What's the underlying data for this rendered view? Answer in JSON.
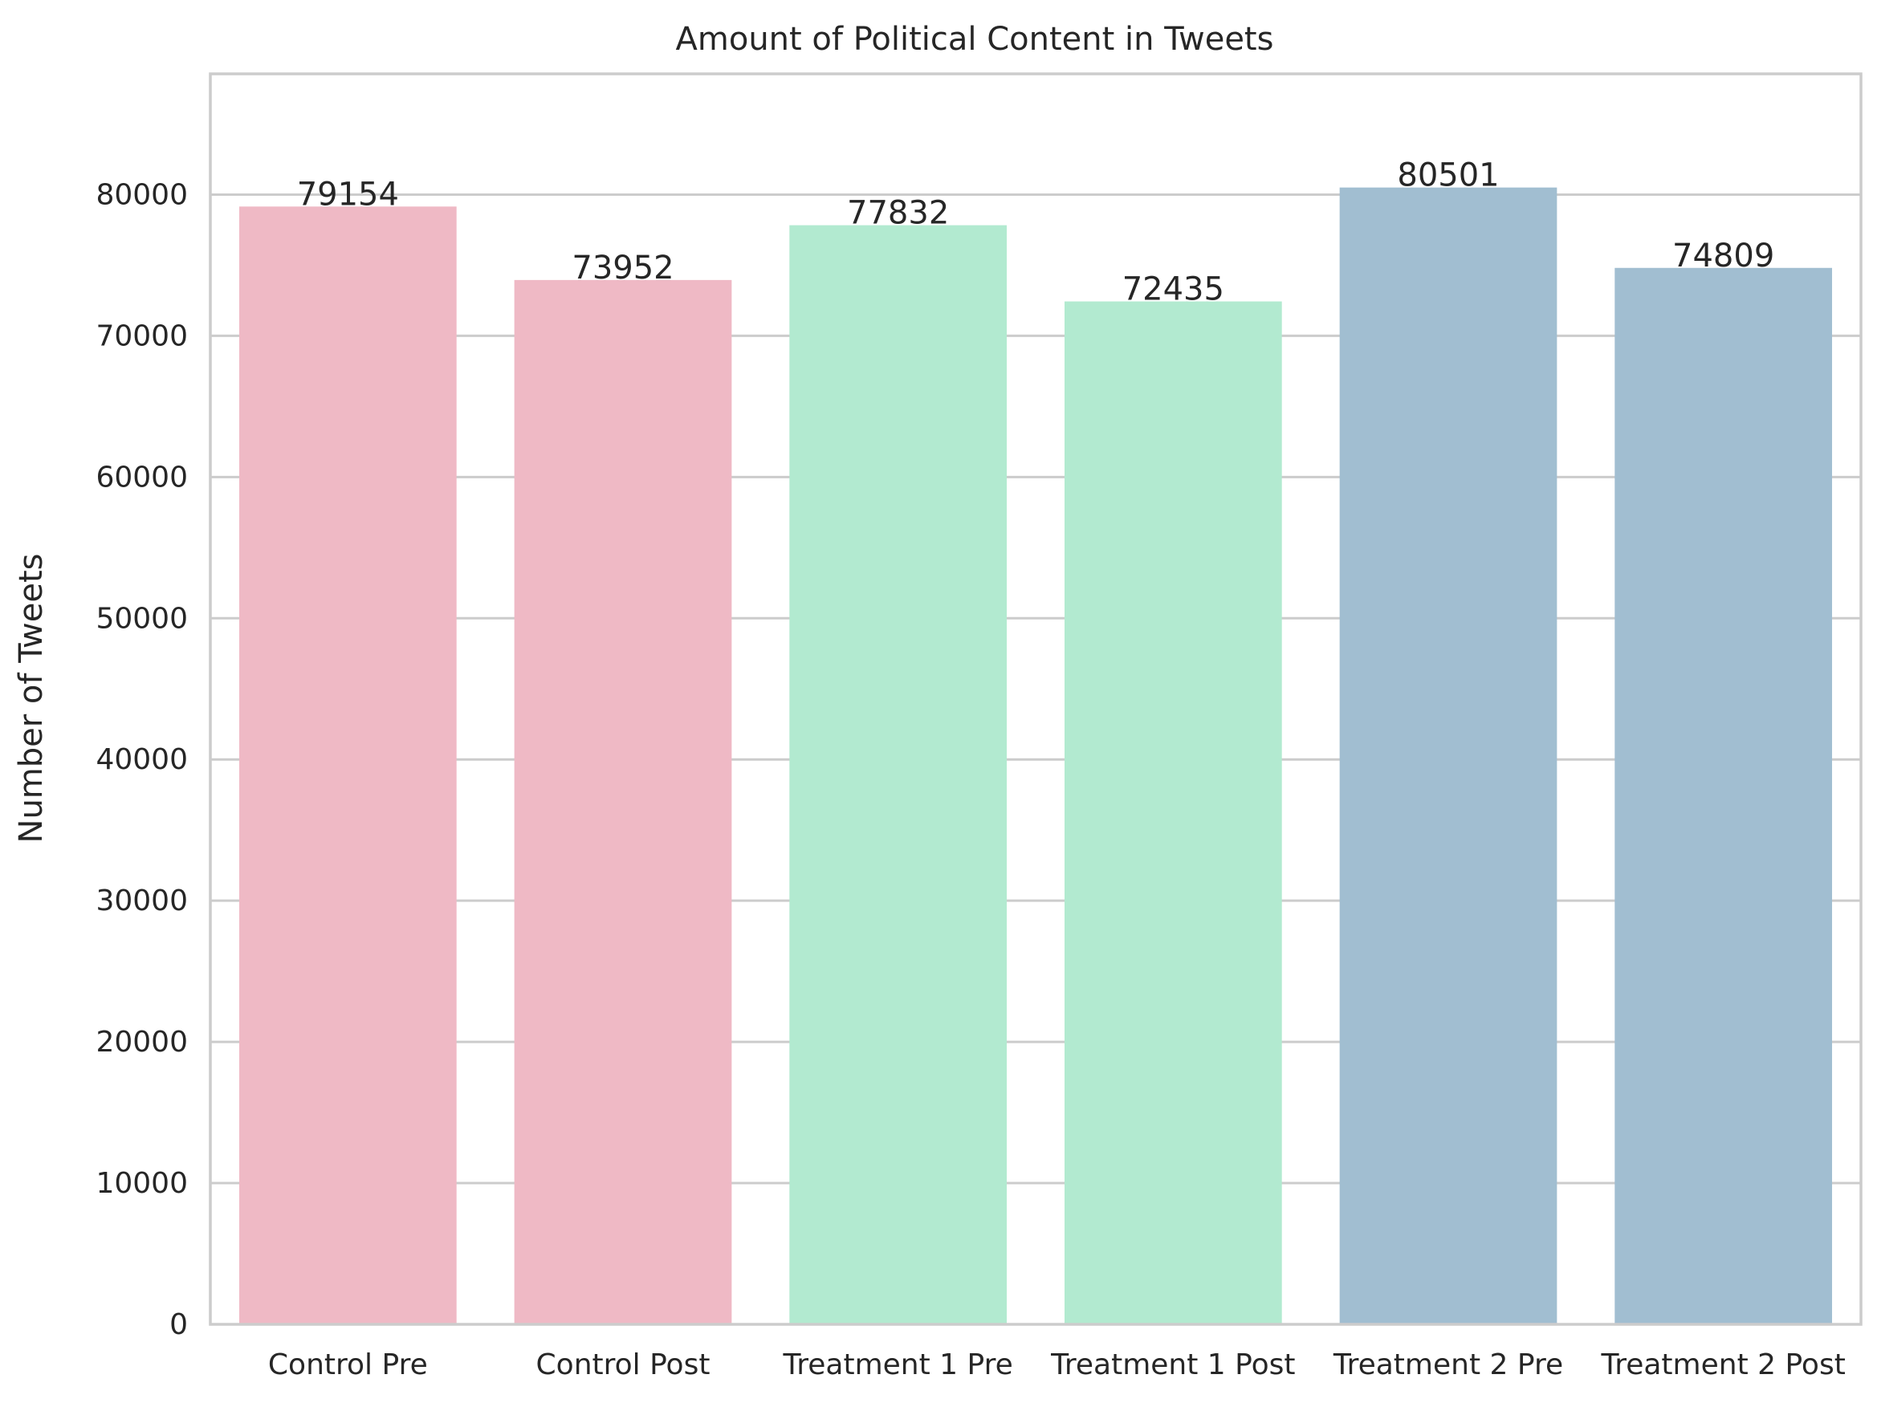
{
  "chart_data": {
    "type": "bar",
    "title": "Amount of Political Content in Tweets",
    "xlabel": "",
    "ylabel": "Number of Tweets",
    "categories": [
      "Control Pre",
      "Control Post",
      "Treatment 1 Pre",
      "Treatment 1 Post",
      "Treatment 2 Pre",
      "Treatment 2 Post"
    ],
    "values": [
      79154,
      73952,
      77832,
      72435,
      80501,
      74809
    ],
    "data_labels": [
      "79154",
      "73952",
      "77832",
      "72435",
      "80501",
      "74809"
    ],
    "bar_colors": [
      "#efb9c5",
      "#efb9c5",
      "#b2ead0",
      "#b2ead0",
      "#a1bed1",
      "#a1bed1"
    ],
    "ylim": [
      0,
      88551
    ],
    "yticks": [
      0,
      10000,
      20000,
      30000,
      40000,
      50000,
      60000,
      70000,
      80000
    ],
    "ytick_labels": [
      "0",
      "10000",
      "20000",
      "30000",
      "40000",
      "50000",
      "60000",
      "70000",
      "80000"
    ],
    "grid": "horizontal",
    "legend": "none"
  }
}
